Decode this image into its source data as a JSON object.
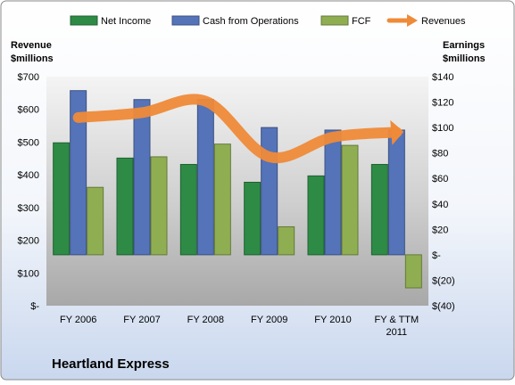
{
  "chart_data": {
    "type": "bar",
    "title": "Heartland Express",
    "categories": [
      "FY 2006",
      "FY 2007",
      "FY 2008",
      "FY 2009",
      "FY 2010",
      "FY & TTM 2011"
    ],
    "left_axis": {
      "label_line1": "Revenue",
      "label_line2": "$millions",
      "range": [
        0,
        700
      ],
      "ticks": [
        0,
        100,
        200,
        300,
        400,
        500,
        600,
        700
      ],
      "tick_labels": [
        "$-",
        "$100",
        "$200",
        "$300",
        "$400",
        "$500",
        "$600",
        "$700"
      ]
    },
    "right_axis": {
      "label_line1": "Earnings",
      "label_line2": "$millions",
      "range": [
        -40,
        140
      ],
      "ticks": [
        -40,
        -20,
        0,
        20,
        40,
        60,
        80,
        100,
        120,
        140
      ],
      "tick_labels": [
        "$(40)",
        "$(20)",
        "$-",
        "$20",
        "$40",
        "$60",
        "$80",
        "$100",
        "$120",
        "$140"
      ]
    },
    "series": [
      {
        "name": "Net Income",
        "axis": "right",
        "color": "#2e8b46",
        "values": [
          88,
          76,
          71,
          57,
          62,
          71
        ]
      },
      {
        "name": "Cash from Operations",
        "axis": "right",
        "color": "#5473b8",
        "values": [
          129,
          122,
          122,
          100,
          98,
          98
        ]
      },
      {
        "name": "FCF",
        "axis": "right",
        "color": "#8fae52",
        "values": [
          53,
          77,
          87,
          22,
          86,
          -26
        ]
      },
      {
        "name": "Revenues",
        "axis": "left",
        "type": "line",
        "color": "#ef8a38",
        "values": [
          575,
          590,
          625,
          455,
          515,
          530
        ]
      }
    ],
    "legend_position": "top",
    "grid": false
  }
}
